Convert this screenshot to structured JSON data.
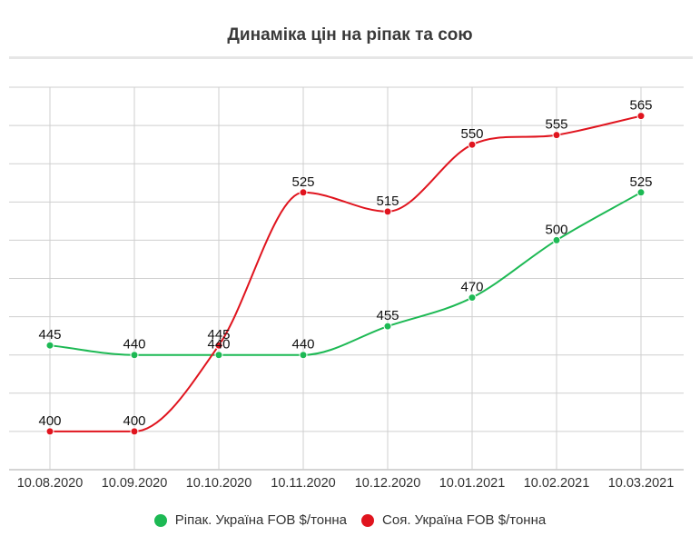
{
  "chart_data": {
    "type": "line",
    "title": "Динаміка цін на ріпак та сою",
    "categories": [
      "10.08.2020",
      "10.09.2020",
      "10.10.2020",
      "10.11.2020",
      "10.12.2020",
      "10.01.2021",
      "10.02.2021",
      "10.03.2021"
    ],
    "ylim": [
      380,
      590
    ],
    "gridlines_y": [
      400,
      420,
      440,
      460,
      480,
      500,
      520,
      540,
      560,
      580
    ],
    "grid": true,
    "legend_position": "bottom",
    "series": [
      {
        "name": "Ріпак. Україна FOB $/тонна",
        "color": "#1db954",
        "values": [
          445,
          440,
          440,
          440,
          455,
          470,
          500,
          525
        ],
        "labels": [
          "445",
          "440",
          "440",
          "440",
          "455",
          "470",
          "500",
          "525"
        ]
      },
      {
        "name": "Соя. Україна FOB $/тонна",
        "color": "#e0141e",
        "values": [
          400,
          400,
          445,
          525,
          515,
          550,
          555,
          565
        ],
        "labels": [
          "400",
          "400",
          "445",
          "525",
          "515",
          "550",
          "555",
          "565"
        ]
      }
    ]
  }
}
